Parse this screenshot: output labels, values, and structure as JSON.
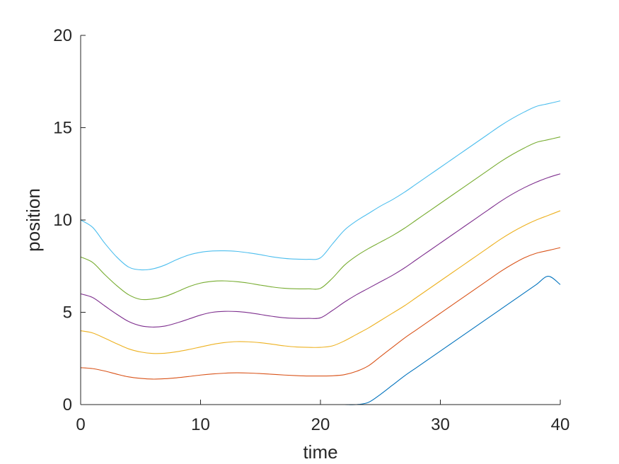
{
  "chart_data": {
    "type": "line",
    "title": "",
    "xlabel": "time",
    "ylabel": "position",
    "xlim": [
      0,
      40
    ],
    "ylim": [
      0,
      20
    ],
    "xticks": [
      "0",
      "10",
      "20",
      "30",
      "40"
    ],
    "yticks": [
      "0",
      "5",
      "10",
      "15",
      "20"
    ],
    "grid": false,
    "legend": "none",
    "x": [
      0,
      1,
      2,
      3,
      4,
      5,
      6,
      7,
      8,
      9,
      10,
      11,
      12,
      13,
      14,
      15,
      16,
      17,
      18,
      19,
      20,
      21,
      22,
      23,
      24,
      25,
      26,
      27,
      28,
      29,
      30,
      31,
      32,
      33,
      34,
      35,
      36,
      37,
      38,
      39,
      40
    ],
    "series": [
      {
        "color": "#0072BD",
        "values": [
          0,
          0,
          0,
          0,
          0,
          0,
          0,
          0,
          0,
          0,
          0,
          0,
          0,
          0,
          0,
          0,
          0,
          0,
          0,
          0,
          0,
          0,
          0,
          0,
          0.12,
          0.55,
          1.05,
          1.55,
          2.0,
          2.45,
          2.9,
          3.35,
          3.8,
          4.25,
          4.7,
          5.15,
          5.6,
          6.05,
          6.5,
          6.95,
          6.5
        ]
      },
      {
        "color": "#D95319",
        "values": [
          2.0,
          1.95,
          1.82,
          1.65,
          1.5,
          1.42,
          1.38,
          1.4,
          1.45,
          1.52,
          1.6,
          1.66,
          1.7,
          1.72,
          1.71,
          1.68,
          1.64,
          1.6,
          1.57,
          1.55,
          1.55,
          1.56,
          1.62,
          1.8,
          2.1,
          2.6,
          3.1,
          3.6,
          4.05,
          4.5,
          4.95,
          5.4,
          5.85,
          6.3,
          6.75,
          7.2,
          7.6,
          7.95,
          8.2,
          8.35,
          8.5
        ]
      },
      {
        "color": "#EDB120",
        "values": [
          4.0,
          3.88,
          3.6,
          3.3,
          3.02,
          2.85,
          2.77,
          2.78,
          2.86,
          2.98,
          3.12,
          3.26,
          3.36,
          3.41,
          3.4,
          3.35,
          3.27,
          3.18,
          3.12,
          3.1,
          3.1,
          3.18,
          3.45,
          3.8,
          4.15,
          4.55,
          4.95,
          5.35,
          5.8,
          6.25,
          6.7,
          7.15,
          7.6,
          8.05,
          8.5,
          8.95,
          9.35,
          9.7,
          10.0,
          10.25,
          10.5
        ]
      },
      {
        "color": "#7E2F8E",
        "values": [
          6.0,
          5.8,
          5.35,
          4.9,
          4.5,
          4.27,
          4.2,
          4.25,
          4.42,
          4.63,
          4.85,
          5.0,
          5.05,
          5.04,
          4.98,
          4.88,
          4.78,
          4.7,
          4.67,
          4.67,
          4.7,
          5.1,
          5.55,
          5.95,
          6.3,
          6.65,
          7.0,
          7.4,
          7.85,
          8.3,
          8.75,
          9.2,
          9.65,
          10.1,
          10.55,
          11.0,
          11.4,
          11.75,
          12.05,
          12.3,
          12.5
        ]
      },
      {
        "color": "#77AC30",
        "values": [
          8.0,
          7.7,
          7.05,
          6.45,
          5.95,
          5.7,
          5.72,
          5.85,
          6.1,
          6.38,
          6.58,
          6.68,
          6.7,
          6.66,
          6.58,
          6.47,
          6.37,
          6.3,
          6.27,
          6.27,
          6.3,
          6.85,
          7.55,
          8.05,
          8.45,
          8.8,
          9.15,
          9.55,
          10.0,
          10.45,
          10.9,
          11.35,
          11.8,
          12.25,
          12.7,
          13.15,
          13.55,
          13.9,
          14.2,
          14.35,
          14.5
        ]
      },
      {
        "color": "#4DBEEE",
        "values": [
          10.0,
          9.6,
          8.75,
          8.0,
          7.45,
          7.3,
          7.35,
          7.55,
          7.85,
          8.1,
          8.25,
          8.32,
          8.33,
          8.3,
          8.22,
          8.12,
          8.0,
          7.92,
          7.88,
          7.87,
          7.95,
          8.7,
          9.45,
          9.95,
          10.35,
          10.75,
          11.1,
          11.5,
          11.95,
          12.4,
          12.85,
          13.3,
          13.75,
          14.2,
          14.65,
          15.1,
          15.5,
          15.85,
          16.15,
          16.3,
          16.45
        ]
      }
    ]
  }
}
